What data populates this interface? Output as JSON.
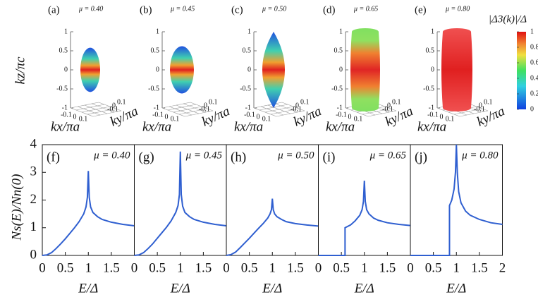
{
  "surfaces": {
    "panels": [
      {
        "label": "(a)",
        "mu": "μ = 0.40"
      },
      {
        "label": "(b)",
        "mu": "μ = 0.45"
      },
      {
        "label": "(c)",
        "mu": "μ = 0.50"
      },
      {
        "label": "(d)",
        "mu": "μ = 0.65"
      },
      {
        "label": "(e)",
        "mu": "μ = 0.80"
      }
    ],
    "zlabel": "kz/πc",
    "xlabel": "kx/πa",
    "ylabel": "ky/πa",
    "zlim": [
      -1,
      1
    ],
    "zticks": [
      1,
      0.5,
      0,
      -0.5,
      -1
    ],
    "kticks": [
      -0.1,
      0,
      0.1
    ],
    "colorbar": {
      "label": "|Δ3(k)|/Δ",
      "lim": [
        0,
        1
      ],
      "ticks": [
        0,
        0.2,
        0.4,
        0.6,
        0.8,
        1
      ]
    }
  },
  "chart_data": [
    {
      "type": "line",
      "title": "(f)",
      "annotation": "μ = 0.40",
      "xlabel": "E/Δ",
      "ylabel": "Ns(E)/Nn(0)",
      "xlim": [
        0,
        2
      ],
      "ylim": [
        0,
        4
      ],
      "xticks": [
        0,
        0.5,
        1,
        1.5
      ],
      "yticks": [
        0,
        1,
        2,
        3,
        4
      ],
      "x": [
        0,
        0.1,
        0.2,
        0.3,
        0.4,
        0.5,
        0.6,
        0.7,
        0.8,
        0.9,
        0.95,
        0.98,
        1.0,
        1.02,
        1.05,
        1.1,
        1.2,
        1.3,
        1.5,
        1.75,
        2.0
      ],
      "series": [
        {
          "color": "#2f5fd0",
          "values": [
            0,
            0.02,
            0.1,
            0.25,
            0.42,
            0.6,
            0.8,
            1.0,
            1.22,
            1.5,
            1.75,
            2.1,
            3.05,
            2.1,
            1.75,
            1.55,
            1.4,
            1.3,
            1.2,
            1.12,
            1.07
          ]
        }
      ]
    },
    {
      "type": "line",
      "title": "(g)",
      "annotation": "μ = 0.45",
      "xlabel": "E/Δ",
      "xlim": [
        0,
        2
      ],
      "ylim": [
        0,
        4
      ],
      "xticks": [
        0,
        0.5,
        1,
        1.5
      ],
      "x": [
        0,
        0.1,
        0.2,
        0.3,
        0.4,
        0.5,
        0.6,
        0.7,
        0.8,
        0.9,
        0.95,
        0.98,
        1.0,
        1.02,
        1.05,
        1.1,
        1.2,
        1.3,
        1.5,
        1.75,
        2.0
      ],
      "series": [
        {
          "color": "#2f5fd0",
          "values": [
            0,
            0.02,
            0.1,
            0.25,
            0.42,
            0.62,
            0.82,
            1.02,
            1.25,
            1.55,
            1.8,
            2.2,
            3.75,
            2.2,
            1.78,
            1.55,
            1.4,
            1.3,
            1.2,
            1.12,
            1.07
          ]
        }
      ]
    },
    {
      "type": "line",
      "title": "(h)",
      "annotation": "μ = 0.50",
      "xlabel": "E/Δ",
      "xlim": [
        0,
        2
      ],
      "ylim": [
        0,
        4
      ],
      "xticks": [
        0,
        0.5,
        1,
        1.5
      ],
      "x": [
        0,
        0.1,
        0.2,
        0.3,
        0.4,
        0.5,
        0.6,
        0.7,
        0.8,
        0.9,
        0.95,
        0.98,
        1.0,
        1.02,
        1.05,
        1.1,
        1.2,
        1.3,
        1.5,
        1.75,
        2.0
      ],
      "series": [
        {
          "color": "#2f5fd0",
          "values": [
            0,
            0.03,
            0.12,
            0.28,
            0.45,
            0.62,
            0.8,
            0.98,
            1.15,
            1.35,
            1.5,
            1.65,
            2.05,
            1.65,
            1.5,
            1.4,
            1.3,
            1.22,
            1.15,
            1.1,
            1.06
          ]
        }
      ]
    },
    {
      "type": "line",
      "title": "(i)",
      "annotation": "μ = 0.65",
      "xlabel": "E/Δ",
      "xlim": [
        0,
        2
      ],
      "ylim": [
        0,
        4
      ],
      "xticks": [
        0,
        0.5,
        1,
        1.5
      ],
      "x": [
        0,
        0.5,
        0.58,
        0.58,
        0.7,
        0.8,
        0.9,
        0.95,
        0.98,
        1.0,
        1.02,
        1.05,
        1.1,
        1.2,
        1.3,
        1.5,
        1.75,
        2.0
      ],
      "series": [
        {
          "color": "#2f5fd0",
          "values": [
            0,
            0,
            0,
            1.0,
            1.1,
            1.25,
            1.45,
            1.65,
            1.95,
            2.7,
            1.95,
            1.65,
            1.5,
            1.35,
            1.27,
            1.18,
            1.12,
            1.08
          ]
        }
      ]
    },
    {
      "type": "line",
      "title": "(j)",
      "annotation": "μ = 0.80",
      "xlabel": "E/Δ",
      "xlim": [
        0,
        2
      ],
      "ylim": [
        0,
        4
      ],
      "xticks": [
        0,
        0.5,
        1,
        1.5,
        2
      ],
      "x": [
        0,
        0.5,
        0.85,
        0.85,
        0.9,
        0.95,
        0.98,
        1.0,
        1.02,
        1.05,
        1.1,
        1.2,
        1.3,
        1.5,
        1.75,
        2.0
      ],
      "series": [
        {
          "color": "#2f5fd0",
          "values": [
            0,
            0,
            0,
            1.8,
            2.0,
            2.4,
            3.0,
            4.0,
            3.0,
            2.3,
            1.9,
            1.6,
            1.45,
            1.3,
            1.18,
            1.12
          ]
        }
      ]
    }
  ]
}
